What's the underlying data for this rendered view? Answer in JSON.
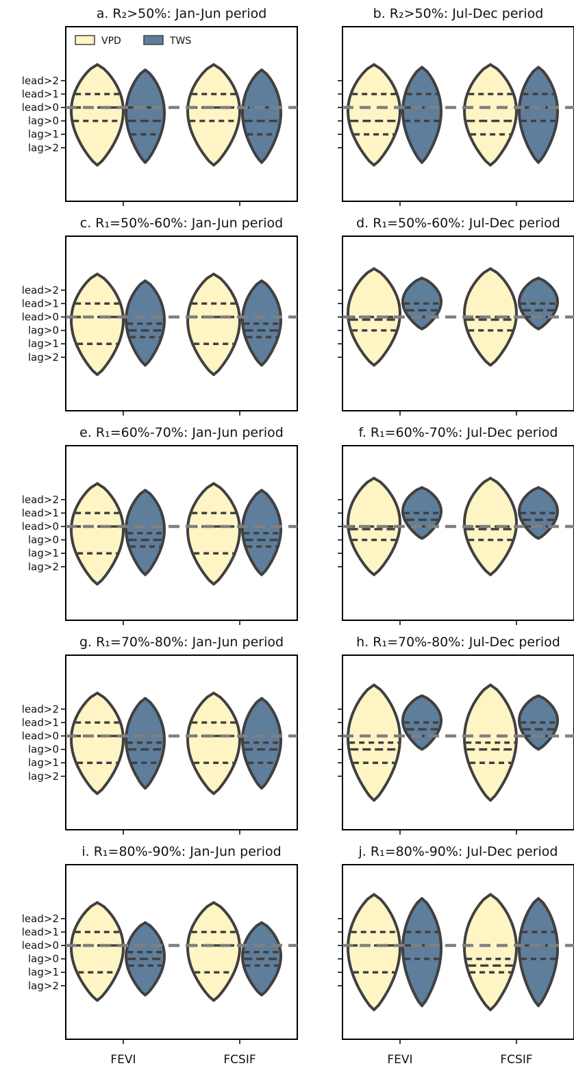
{
  "chart_data": {
    "type": "violin",
    "y_tick_labels": [
      "lead>2",
      "lead>1",
      "lead>0",
      "lag>0",
      "lag>1",
      "lag>2"
    ],
    "y_tick_values": [
      2,
      1,
      0,
      -1,
      -2,
      -3
    ],
    "categories": [
      "FEVI",
      "FCSIF"
    ],
    "reference_line": 0,
    "legend": {
      "placement": "top-left",
      "entries": [
        {
          "label": "VPD",
          "color": "#fff5c4"
        },
        {
          "label": "TWS",
          "color": "#5e7e9b"
        }
      ]
    },
    "colors": {
      "outline": "#404040",
      "reference": "#808080"
    },
    "panels": [
      {
        "title": "a. R₂>50%: Jan-Jun period",
        "series": {
          "FEVI": {
            "VPD": {
              "min": -4.3,
              "max": 3.2,
              "quartiles": [
                -1,
                0,
                1
              ]
            },
            "TWS": {
              "min": -4.1,
              "max": 2.8,
              "quartiles": [
                -2,
                -1,
                0
              ]
            }
          },
          "FCSIF": {
            "VPD": {
              "min": -4.3,
              "max": 3.2,
              "quartiles": [
                -1,
                0,
                1
              ]
            },
            "TWS": {
              "min": -4.1,
              "max": 2.8,
              "quartiles": [
                -2,
                -1,
                0
              ]
            }
          }
        }
      },
      {
        "title": "b. R₂>50%: Jul-Dec period",
        "series": {
          "FEVI": {
            "VPD": {
              "min": -4.3,
              "max": 3.2,
              "quartiles": [
                -2,
                -1,
                1
              ]
            },
            "TWS": {
              "min": -4.1,
              "max": 3.0,
              "quartiles": [
                -1,
                0,
                1
              ]
            }
          },
          "FCSIF": {
            "VPD": {
              "min": -4.3,
              "max": 3.2,
              "quartiles": [
                -2,
                -1,
                1
              ]
            },
            "TWS": {
              "min": -4.1,
              "max": 3.0,
              "quartiles": [
                -1,
                0,
                1
              ]
            }
          }
        }
      },
      {
        "title": "c. R₁=50%-60%: Jan-Jun period",
        "series": {
          "FEVI": {
            "VPD": {
              "min": -4.3,
              "max": 3.2,
              "quartiles": [
                -2,
                0,
                1
              ]
            },
            "TWS": {
              "min": -3.6,
              "max": 2.7,
              "quartiles": [
                -1.5,
                -1,
                -0.5
              ]
            }
          },
          "FCSIF": {
            "VPD": {
              "min": -4.3,
              "max": 3.2,
              "quartiles": [
                -2,
                0,
                1
              ]
            },
            "TWS": {
              "min": -3.6,
              "max": 2.7,
              "quartiles": [
                -1.5,
                -1,
                -0.5
              ]
            }
          }
        }
      },
      {
        "title": "d. R₁=50%-60%: Jul-Dec period",
        "series": {
          "FEVI": {
            "VPD": {
              "min": -3.6,
              "max": 3.6,
              "quartiles": [
                -1,
                -0.2,
                0
              ]
            },
            "TWS": {
              "min": -0.9,
              "max": 2.9,
              "quartiles": [
                0,
                0.5,
                1
              ]
            }
          },
          "FCSIF": {
            "VPD": {
              "min": -3.6,
              "max": 3.6,
              "quartiles": [
                -1,
                -0.2,
                0
              ]
            },
            "TWS": {
              "min": -0.9,
              "max": 2.9,
              "quartiles": [
                0,
                0.5,
                1
              ]
            }
          }
        }
      },
      {
        "title": "e. R₁=60%-70%: Jan-Jun period",
        "series": {
          "FEVI": {
            "VPD": {
              "min": -4.3,
              "max": 3.2,
              "quartiles": [
                -2,
                0,
                1
              ]
            },
            "TWS": {
              "min": -3.6,
              "max": 2.7,
              "quartiles": [
                -1.5,
                -1,
                -0.5
              ]
            }
          },
          "FCSIF": {
            "VPD": {
              "min": -4.3,
              "max": 3.2,
              "quartiles": [
                -2,
                0,
                1
              ]
            },
            "TWS": {
              "min": -3.6,
              "max": 2.7,
              "quartiles": [
                -1.5,
                -1,
                -0.5
              ]
            }
          }
        }
      },
      {
        "title": "f. R₁=60%-70%: Jul-Dec period",
        "series": {
          "FEVI": {
            "VPD": {
              "min": -3.6,
              "max": 3.6,
              "quartiles": [
                -1,
                -0.2,
                0
              ]
            },
            "TWS": {
              "min": -0.9,
              "max": 2.9,
              "quartiles": [
                0,
                0.5,
                1
              ]
            }
          },
          "FCSIF": {
            "VPD": {
              "min": -3.6,
              "max": 3.6,
              "quartiles": [
                -1,
                -0.2,
                0
              ]
            },
            "TWS": {
              "min": -0.9,
              "max": 2.9,
              "quartiles": [
                0,
                0.5,
                1
              ]
            }
          }
        }
      },
      {
        "title": "g. R₁=70%-80%: Jan-Jun period",
        "series": {
          "FEVI": {
            "VPD": {
              "min": -4.3,
              "max": 3.2,
              "quartiles": [
                -2,
                0,
                1
              ]
            },
            "TWS": {
              "min": -3.9,
              "max": 2.8,
              "quartiles": [
                -2,
                -1,
                -0.5
              ]
            }
          },
          "FCSIF": {
            "VPD": {
              "min": -4.3,
              "max": 3.2,
              "quartiles": [
                -2,
                0,
                1
              ]
            },
            "TWS": {
              "min": -3.9,
              "max": 2.8,
              "quartiles": [
                -2,
                -1,
                -0.5
              ]
            }
          }
        }
      },
      {
        "title": "h. R₁=70%-80%: Jul-Dec period",
        "series": {
          "FEVI": {
            "VPD": {
              "min": -4.8,
              "max": 3.8,
              "quartiles": [
                -2,
                -1,
                -0.5
              ]
            },
            "TWS": {
              "min": -1.0,
              "max": 3.0,
              "quartiles": [
                0,
                0.5,
                1
              ]
            }
          },
          "FCSIF": {
            "VPD": {
              "min": -4.8,
              "max": 3.8,
              "quartiles": [
                -2,
                -1,
                -0.5
              ]
            },
            "TWS": {
              "min": -1.0,
              "max": 3.0,
              "quartiles": [
                0,
                0.5,
                1
              ]
            }
          }
        }
      },
      {
        "title": "i. R₁=80%-90%: Jan-Jun period",
        "series": {
          "FEVI": {
            "VPD": {
              "min": -4.1,
              "max": 3.2,
              "quartiles": [
                -2,
                0,
                1
              ]
            },
            "TWS": {
              "min": -3.7,
              "max": 1.7,
              "quartiles": [
                -1.5,
                -1,
                -0.5
              ]
            }
          },
          "FCSIF": {
            "VPD": {
              "min": -4.1,
              "max": 3.2,
              "quartiles": [
                -2,
                0,
                1
              ]
            },
            "TWS": {
              "min": -3.7,
              "max": 1.7,
              "quartiles": [
                -1.5,
                -1,
                -0.5
              ]
            }
          }
        }
      },
      {
        "title": "j. R₁=80%-90%: Jul-Dec period",
        "series": {
          "FEVI": {
            "VPD": {
              "min": -4.8,
              "max": 3.8,
              "quartiles": [
                -2,
                0,
                1
              ]
            },
            "TWS": {
              "min": -4.5,
              "max": 3.5,
              "quartiles": [
                -1,
                0,
                1
              ]
            }
          },
          "FCSIF": {
            "VPD": {
              "min": -4.8,
              "max": 3.8,
              "quartiles": [
                -2,
                -1.5,
                -1
              ]
            },
            "TWS": {
              "min": -4.5,
              "max": 3.5,
              "quartiles": [
                -1,
                0,
                1
              ]
            }
          }
        }
      }
    ]
  }
}
